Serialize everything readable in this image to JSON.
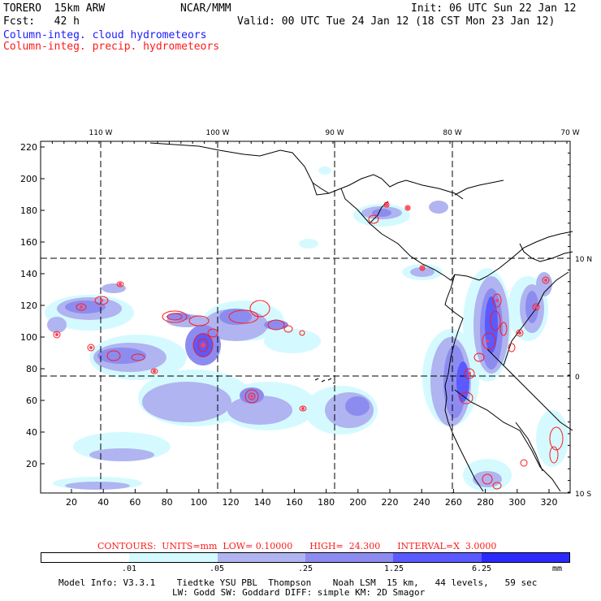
{
  "header": {
    "model": "TORERO  15km ARW",
    "org": "NCAR/MMM",
    "init": "Init: 06 UTC Sun 22 Jan 12",
    "fcst": "Fcst:   42 h",
    "valid": "Valid: 00 UTC Tue 24 Jan 12 (18 CST Mon 23 Jan 12)",
    "field1": "Column-integ. cloud hydrometeors",
    "field2": "Column-integ. precip. hydrometeors"
  },
  "axes": {
    "lon_labels": [
      "110 W",
      "100 W",
      "90 W",
      "80 W",
      "70 W"
    ],
    "lat_labels": [
      "10 N",
      "0",
      "10 S"
    ],
    "y_ticks": [
      "220",
      "200",
      "180",
      "160",
      "140",
      "120",
      "100",
      "80",
      "60",
      "40",
      "20"
    ],
    "x_ticks": [
      "20",
      "40",
      "60",
      "80",
      "100",
      "120",
      "140",
      "160",
      "180",
      "200",
      "220",
      "240",
      "260",
      "280",
      "300",
      "320"
    ]
  },
  "legend": {
    "contour_text": "CONTOURS:  UNITS=mm  LOW= 0.10000      HIGH=  24.300      INTERVAL=X  3.0000",
    "colors": [
      "#ffffff",
      "#d4faff",
      "#b0b4f0",
      "#8c8cf0",
      "#5a5aff",
      "#2a2aff"
    ],
    "ticks": [
      ".01",
      ".05",
      ".25",
      "1.25",
      "6.25"
    ],
    "unit": "mm"
  },
  "model_info": {
    "line1": "Model Info: V3.3.1    Tiedtke YSU PBL  Thompson    Noah LSM  15 km,   44 levels,   59 sec",
    "line2": "LW: Godd SW: Goddard DIFF: simple KM: 2D Smagor"
  },
  "colors": {
    "cloud_light": "#d4faff",
    "cloud_mid": "#b0b4f0",
    "cloud_dark": "#8c8cf0",
    "cloud_deep": "#5a5aff",
    "precip_contour": "#ff1a1a"
  }
}
